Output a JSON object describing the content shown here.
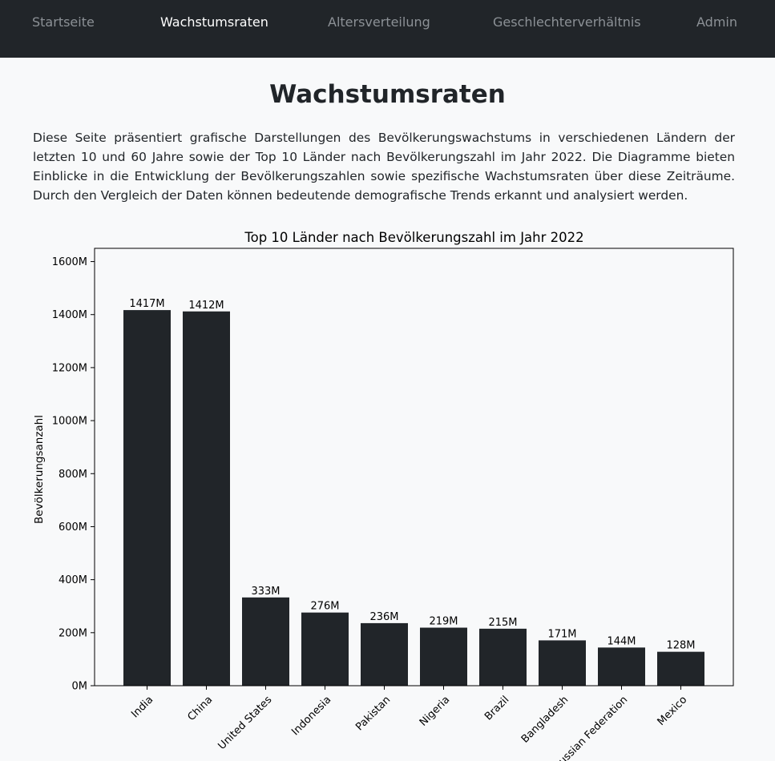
{
  "nav": {
    "items": [
      {
        "label": "Startseite",
        "active": false
      },
      {
        "label": "Wachstumsraten",
        "active": true
      },
      {
        "label": "Altersverteilung",
        "active": false
      },
      {
        "label": "Geschlechterverhältnis",
        "active": false
      },
      {
        "label": "Admin",
        "active": false
      }
    ]
  },
  "page": {
    "title": "Wachstumsraten",
    "intro": "Diese Seite präsentiert grafische Darstellungen des Bevölkerungswachstums in verschiedenen Ländern der letzten 10 und 60 Jahre sowie der Top 10 Länder nach Bevölkerungszahl im Jahr 2022. Die Diagramme bieten Einblicke in die Entwicklung der Bevölkerungszahlen sowie spezifische Wachstumsraten über diese Zeiträume. Durch den Vergleich der Daten können bedeutende demografische Trends erkannt und analysiert werden."
  },
  "chart_data": {
    "type": "bar",
    "title": "Top 10 Länder nach Bevölkerungszahl im Jahr 2022",
    "xlabel": "",
    "ylabel": "Bevölkerungsanzahl",
    "categories": [
      "India",
      "China",
      "United States",
      "Indonesia",
      "Pakistan",
      "Nigeria",
      "Brazil",
      "Bangladesh",
      "Russian Federation",
      "Mexico"
    ],
    "values": [
      1417,
      1412,
      333,
      276,
      236,
      219,
      215,
      171,
      144,
      128
    ],
    "value_labels": [
      "1417M",
      "1412M",
      "333M",
      "276M",
      "236M",
      "219M",
      "215M",
      "171M",
      "144M",
      "128M"
    ],
    "unit": "M",
    "ylim": [
      0,
      1650
    ],
    "yticks": [
      0,
      200,
      400,
      600,
      800,
      1000,
      1200,
      1400,
      1600
    ],
    "ytick_labels": [
      "0M",
      "200M",
      "400M",
      "600M",
      "800M",
      "1000M",
      "1200M",
      "1400M",
      "1600M"
    ],
    "bar_color": "#212529",
    "grid": false,
    "legend": "none"
  }
}
